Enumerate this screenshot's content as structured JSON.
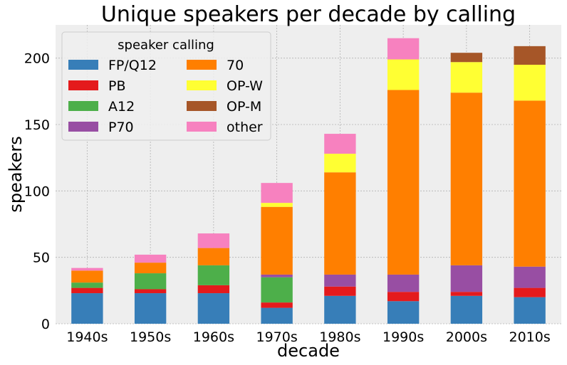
{
  "chart_data": {
    "type": "bar",
    "stacked": true,
    "title": "Unique speakers per decade by calling",
    "xlabel": "decade",
    "ylabel": "speakers",
    "ylim": [
      0,
      225
    ],
    "yticks": [
      0,
      50,
      100,
      150,
      200
    ],
    "grid": true,
    "categories": [
      "1940s",
      "1950s",
      "1960s",
      "1970s",
      "1980s",
      "1990s",
      "2000s",
      "2010s"
    ],
    "legend": {
      "title": "speaker calling",
      "placement": "top-left",
      "columns": 2
    },
    "series": [
      {
        "name": "FP/Q12",
        "color": "#377eb8",
        "values": [
          23,
          23,
          23,
          12,
          21,
          17,
          21,
          20
        ]
      },
      {
        "name": "PB",
        "color": "#e41a1c",
        "values": [
          4,
          3,
          6,
          4,
          7,
          7,
          3,
          7
        ]
      },
      {
        "name": "A12",
        "color": "#4daf4a",
        "values": [
          4,
          12,
          15,
          19,
          0,
          0,
          0,
          0
        ]
      },
      {
        "name": "P70",
        "color": "#984ea3",
        "values": [
          0,
          0,
          0,
          2,
          9,
          13,
          20,
          16
        ]
      },
      {
        "name": "70",
        "color": "#ff7f00",
        "values": [
          9,
          8,
          13,
          51,
          77,
          139,
          130,
          125
        ]
      },
      {
        "name": "OP-W",
        "color": "#ffff33",
        "values": [
          0,
          0,
          0,
          3,
          14,
          23,
          23,
          27
        ]
      },
      {
        "name": "OP-M",
        "color": "#a65628",
        "values": [
          0,
          0,
          0,
          0,
          0,
          0,
          7,
          14
        ]
      },
      {
        "name": "other",
        "color": "#f781bf",
        "values": [
          2,
          6,
          11,
          15,
          15,
          16,
          0,
          0
        ]
      }
    ]
  }
}
